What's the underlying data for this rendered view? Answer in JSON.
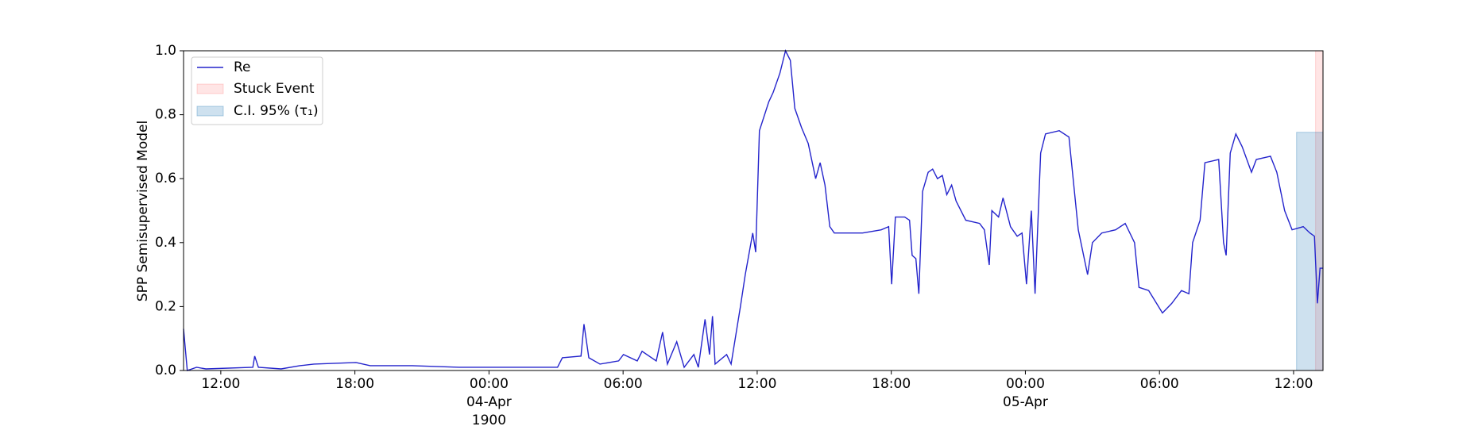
{
  "chart_data": {
    "type": "line",
    "ylabel": "SPP Semisupervised Model",
    "xlim": [
      "1900-04-03T10:20",
      "1900-04-05T13:19"
    ],
    "ylim": [
      0,
      1
    ],
    "yticks": [
      {
        "value": 0,
        "label": "0.0"
      },
      {
        "value": 0.2,
        "label": "0.2"
      },
      {
        "value": 0.4,
        "label": "0.4"
      },
      {
        "value": 0.6,
        "label": "0.6"
      },
      {
        "value": 0.8,
        "label": "0.8"
      },
      {
        "value": 1,
        "label": "1.0"
      }
    ],
    "xticks": [
      {
        "value": "1900-04-03T12:00",
        "label": "12:00"
      },
      {
        "value": "1900-04-03T18:00",
        "label": "18:00"
      },
      {
        "value": "1900-04-04T00:00",
        "label": "00:00\n04-Apr\n1900"
      },
      {
        "value": "1900-04-04T06:00",
        "label": "06:00"
      },
      {
        "value": "1900-04-04T12:00",
        "label": "12:00"
      },
      {
        "value": "1900-04-04T18:00",
        "label": "18:00"
      },
      {
        "value": "1900-04-05T00:00",
        "label": "00:00\n05-Apr"
      },
      {
        "value": "1900-04-05T06:00",
        "label": "06:00"
      },
      {
        "value": "1900-04-05T12:00",
        "label": "12:00"
      }
    ],
    "legend": "upper left",
    "x": [
      "1900-04-03T10:20",
      "1900-04-03T10:30",
      "1900-04-03T10:55",
      "1900-04-03T11:20",
      "1900-04-03T13:26",
      "1900-04-03T13:31",
      "1900-04-03T13:41",
      "1900-04-03T14:42",
      "1900-04-03T15:32",
      "1900-04-03T16:10",
      "1900-04-03T18:03",
      "1900-04-03T18:41",
      "1900-04-03T20:34",
      "1900-04-03T22:40",
      "1900-04-04T00:59",
      "1900-04-04T03:04",
      "1900-04-04T03:17",
      "1900-04-04T04:07",
      "1900-04-04T04:15",
      "1900-04-04T04:28",
      "1900-04-04T04:58",
      "1900-04-04T05:48",
      "1900-04-04T06:01",
      "1900-04-04T06:38",
      "1900-04-04T06:51",
      "1900-04-04T07:29",
      "1900-04-04T07:46",
      "1900-04-04T07:59",
      "1900-04-04T08:24",
      "1900-04-04T08:44",
      "1900-04-04T09:10",
      "1900-04-04T09:22",
      "1900-04-04T09:40",
      "1900-04-04T09:52",
      "1900-04-04T10:00",
      "1900-04-04T10:07",
      "1900-04-04T10:38",
      "1900-04-04T10:50",
      "1900-04-04T11:15",
      "1900-04-04T11:28",
      "1900-04-04T11:48",
      "1900-04-04T11:56",
      "1900-04-04T12:06",
      "1900-04-04T12:31",
      "1900-04-04T12:43",
      "1900-04-04T13:01",
      "1900-04-04T13:16",
      "1900-04-04T13:29",
      "1900-04-04T13:41",
      "1900-04-04T13:59",
      "1900-04-04T14:17",
      "1900-04-04T14:37",
      "1900-04-04T14:49",
      "1900-04-04T15:02",
      "1900-04-04T15:15",
      "1900-04-04T15:27",
      "1900-04-04T15:52",
      "1900-04-04T16:43",
      "1900-04-04T17:33",
      "1900-04-04T17:53",
      "1900-04-04T18:01",
      "1900-04-04T18:11",
      "1900-04-04T18:36",
      "1900-04-04T18:49",
      "1900-04-04T18:56",
      "1900-04-04T19:06",
      "1900-04-04T19:14",
      "1900-04-04T19:24",
      "1900-04-04T19:39",
      "1900-04-04T19:51",
      "1900-04-04T20:04",
      "1900-04-04T20:17",
      "1900-04-04T20:29",
      "1900-04-04T20:42",
      "1900-04-04T20:54",
      "1900-04-04T21:20",
      "1900-04-04T21:57",
      "1900-04-04T22:10",
      "1900-04-04T22:23",
      "1900-04-04T22:30",
      "1900-04-04T22:48",
      "1900-04-04T23:00",
      "1900-04-04T23:20",
      "1900-04-04T23:38",
      "1900-04-04T23:51",
      "1900-04-05T00:03",
      "1900-04-05T00:16",
      "1900-04-05T00:26",
      "1900-04-05T00:41",
      "1900-04-05T00:54",
      "1900-04-05T01:31",
      "1900-04-05T01:57",
      "1900-04-05T02:22",
      "1900-04-05T02:47",
      "1900-04-05T03:00",
      "1900-04-05T03:25",
      "1900-04-05T04:02",
      "1900-04-05T04:28",
      "1900-04-05T04:53",
      "1900-04-05T05:05",
      "1900-04-05T05:31",
      "1900-04-05T06:08",
      "1900-04-05T06:33",
      "1900-04-05T06:59",
      "1900-04-05T07:19",
      "1900-04-05T07:29",
      "1900-04-05T07:49",
      "1900-04-05T08:02",
      "1900-04-05T08:39",
      "1900-04-05T08:52",
      "1900-04-05T08:59",
      "1900-04-05T09:10",
      "1900-04-05T09:25",
      "1900-04-05T09:42",
      "1900-04-05T10:07",
      "1900-04-05T10:20",
      "1900-04-05T10:58",
      "1900-04-05T11:15",
      "1900-04-05T11:36",
      "1900-04-05T11:56",
      "1900-04-05T12:26",
      "1900-04-05T12:44",
      "1900-04-05T12:56",
      "1900-04-05T13:04",
      "1900-04-05T13:11",
      "1900-04-05T13:19"
    ],
    "series": [
      {
        "name": "Re",
        "color": "#2424cc",
        "values": [
          0.13,
          0,
          0.01,
          0.005,
          0.01,
          0.045,
          0.01,
          0.005,
          0.015,
          0.02,
          0.025,
          0.015,
          0.015,
          0.01,
          0.01,
          0.01,
          0.04,
          0.045,
          0.145,
          0.04,
          0.02,
          0.03,
          0.05,
          0.03,
          0.06,
          0.03,
          0.12,
          0.02,
          0.09,
          0.01,
          0.05,
          0.01,
          0.16,
          0.05,
          0.17,
          0.02,
          0.05,
          0.02,
          0.2,
          0.3,
          0.43,
          0.37,
          0.75,
          0.84,
          0.87,
          0.93,
          1,
          0.97,
          0.82,
          0.76,
          0.71,
          0.6,
          0.65,
          0.58,
          0.45,
          0.43,
          0.43,
          0.43,
          0.44,
          0.45,
          0.27,
          0.48,
          0.48,
          0.47,
          0.36,
          0.35,
          0.24,
          0.56,
          0.62,
          0.63,
          0.6,
          0.61,
          0.55,
          0.58,
          0.53,
          0.47,
          0.46,
          0.44,
          0.33,
          0.5,
          0.48,
          0.54,
          0.45,
          0.42,
          0.43,
          0.27,
          0.5,
          0.24,
          0.68,
          0.74,
          0.75,
          0.73,
          0.44,
          0.3,
          0.4,
          0.43,
          0.44,
          0.46,
          0.4,
          0.26,
          0.25,
          0.18,
          0.21,
          0.25,
          0.24,
          0.4,
          0.47,
          0.65,
          0.66,
          0.4,
          0.36,
          0.68,
          0.74,
          0.7,
          0.62,
          0.66,
          0.67,
          0.62,
          0.5,
          0.44,
          0.45,
          0.43,
          0.42,
          0.21,
          0.32,
          0.32
        ]
      }
    ],
    "spans": [
      {
        "name": "Stuck Event",
        "color": "#ff0000",
        "alpha": 0.1,
        "x": [
          "1900-04-05T12:59",
          "1900-04-05T13:19"
        ],
        "y": [
          0,
          1
        ]
      },
      {
        "name": "C.I. 95% (τ₁)",
        "color": "#1f77b4",
        "alpha": 0.22,
        "x": [
          "1900-04-05T12:08",
          "1900-04-05T13:19"
        ],
        "y": [
          0,
          0.745
        ]
      }
    ]
  }
}
